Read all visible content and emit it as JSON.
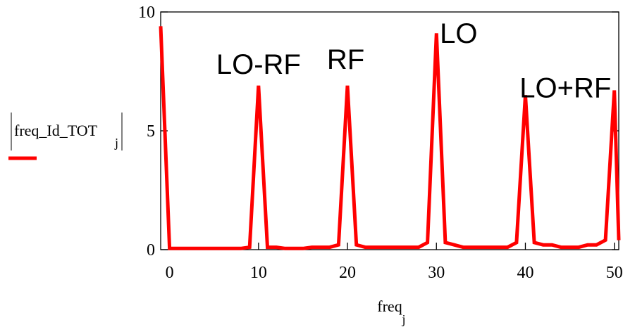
{
  "chart_data": {
    "type": "line",
    "title": "",
    "xlabel": "freq",
    "xlabel_subscript": "j",
    "ylabel": "freq_Id_TOT",
    "ylabel_subscript": "j",
    "xlim": [
      -1,
      50.5
    ],
    "ylim": [
      0,
      10
    ],
    "xticks": [
      "0",
      "10",
      "20",
      "30",
      "40",
      "50"
    ],
    "yticks": [
      "0",
      "5",
      "10"
    ],
    "series": [
      {
        "color": "#ff0000",
        "x": [
          -1,
          0,
          1,
          2,
          3,
          4,
          5,
          6,
          7,
          8,
          9,
          10,
          11,
          12,
          13,
          14,
          15,
          16,
          17,
          18,
          19,
          20,
          21,
          22,
          23,
          24,
          25,
          26,
          27,
          28,
          29,
          30,
          31,
          32,
          33,
          34,
          35,
          36,
          37,
          38,
          39,
          40,
          41,
          42,
          43,
          44,
          45,
          46,
          47,
          48,
          49,
          50,
          51
        ],
        "y": [
          9.4,
          0.05,
          0.05,
          0.05,
          0.05,
          0.05,
          0.05,
          0.05,
          0.05,
          0.05,
          0.1,
          6.9,
          0.1,
          0.1,
          0.05,
          0.05,
          0.05,
          0.1,
          0.1,
          0.1,
          0.2,
          6.9,
          0.2,
          0.1,
          0.1,
          0.1,
          0.1,
          0.1,
          0.1,
          0.1,
          0.3,
          9.1,
          0.3,
          0.2,
          0.1,
          0.1,
          0.1,
          0.1,
          0.1,
          0.1,
          0.3,
          6.5,
          0.3,
          0.2,
          0.2,
          0.1,
          0.1,
          0.1,
          0.2,
          0.2,
          0.4,
          6.7,
          0.4
        ]
      }
    ],
    "annotations": [
      {
        "text": "LO-RF",
        "x": 10,
        "y": 7.4
      },
      {
        "text": "RF",
        "x": 19.8,
        "y": 7.6
      },
      {
        "text": "LO",
        "x": 32.5,
        "y": 8.7
      },
      {
        "text": "LO+RF",
        "x": 44.5,
        "y": 6.4
      }
    ]
  }
}
